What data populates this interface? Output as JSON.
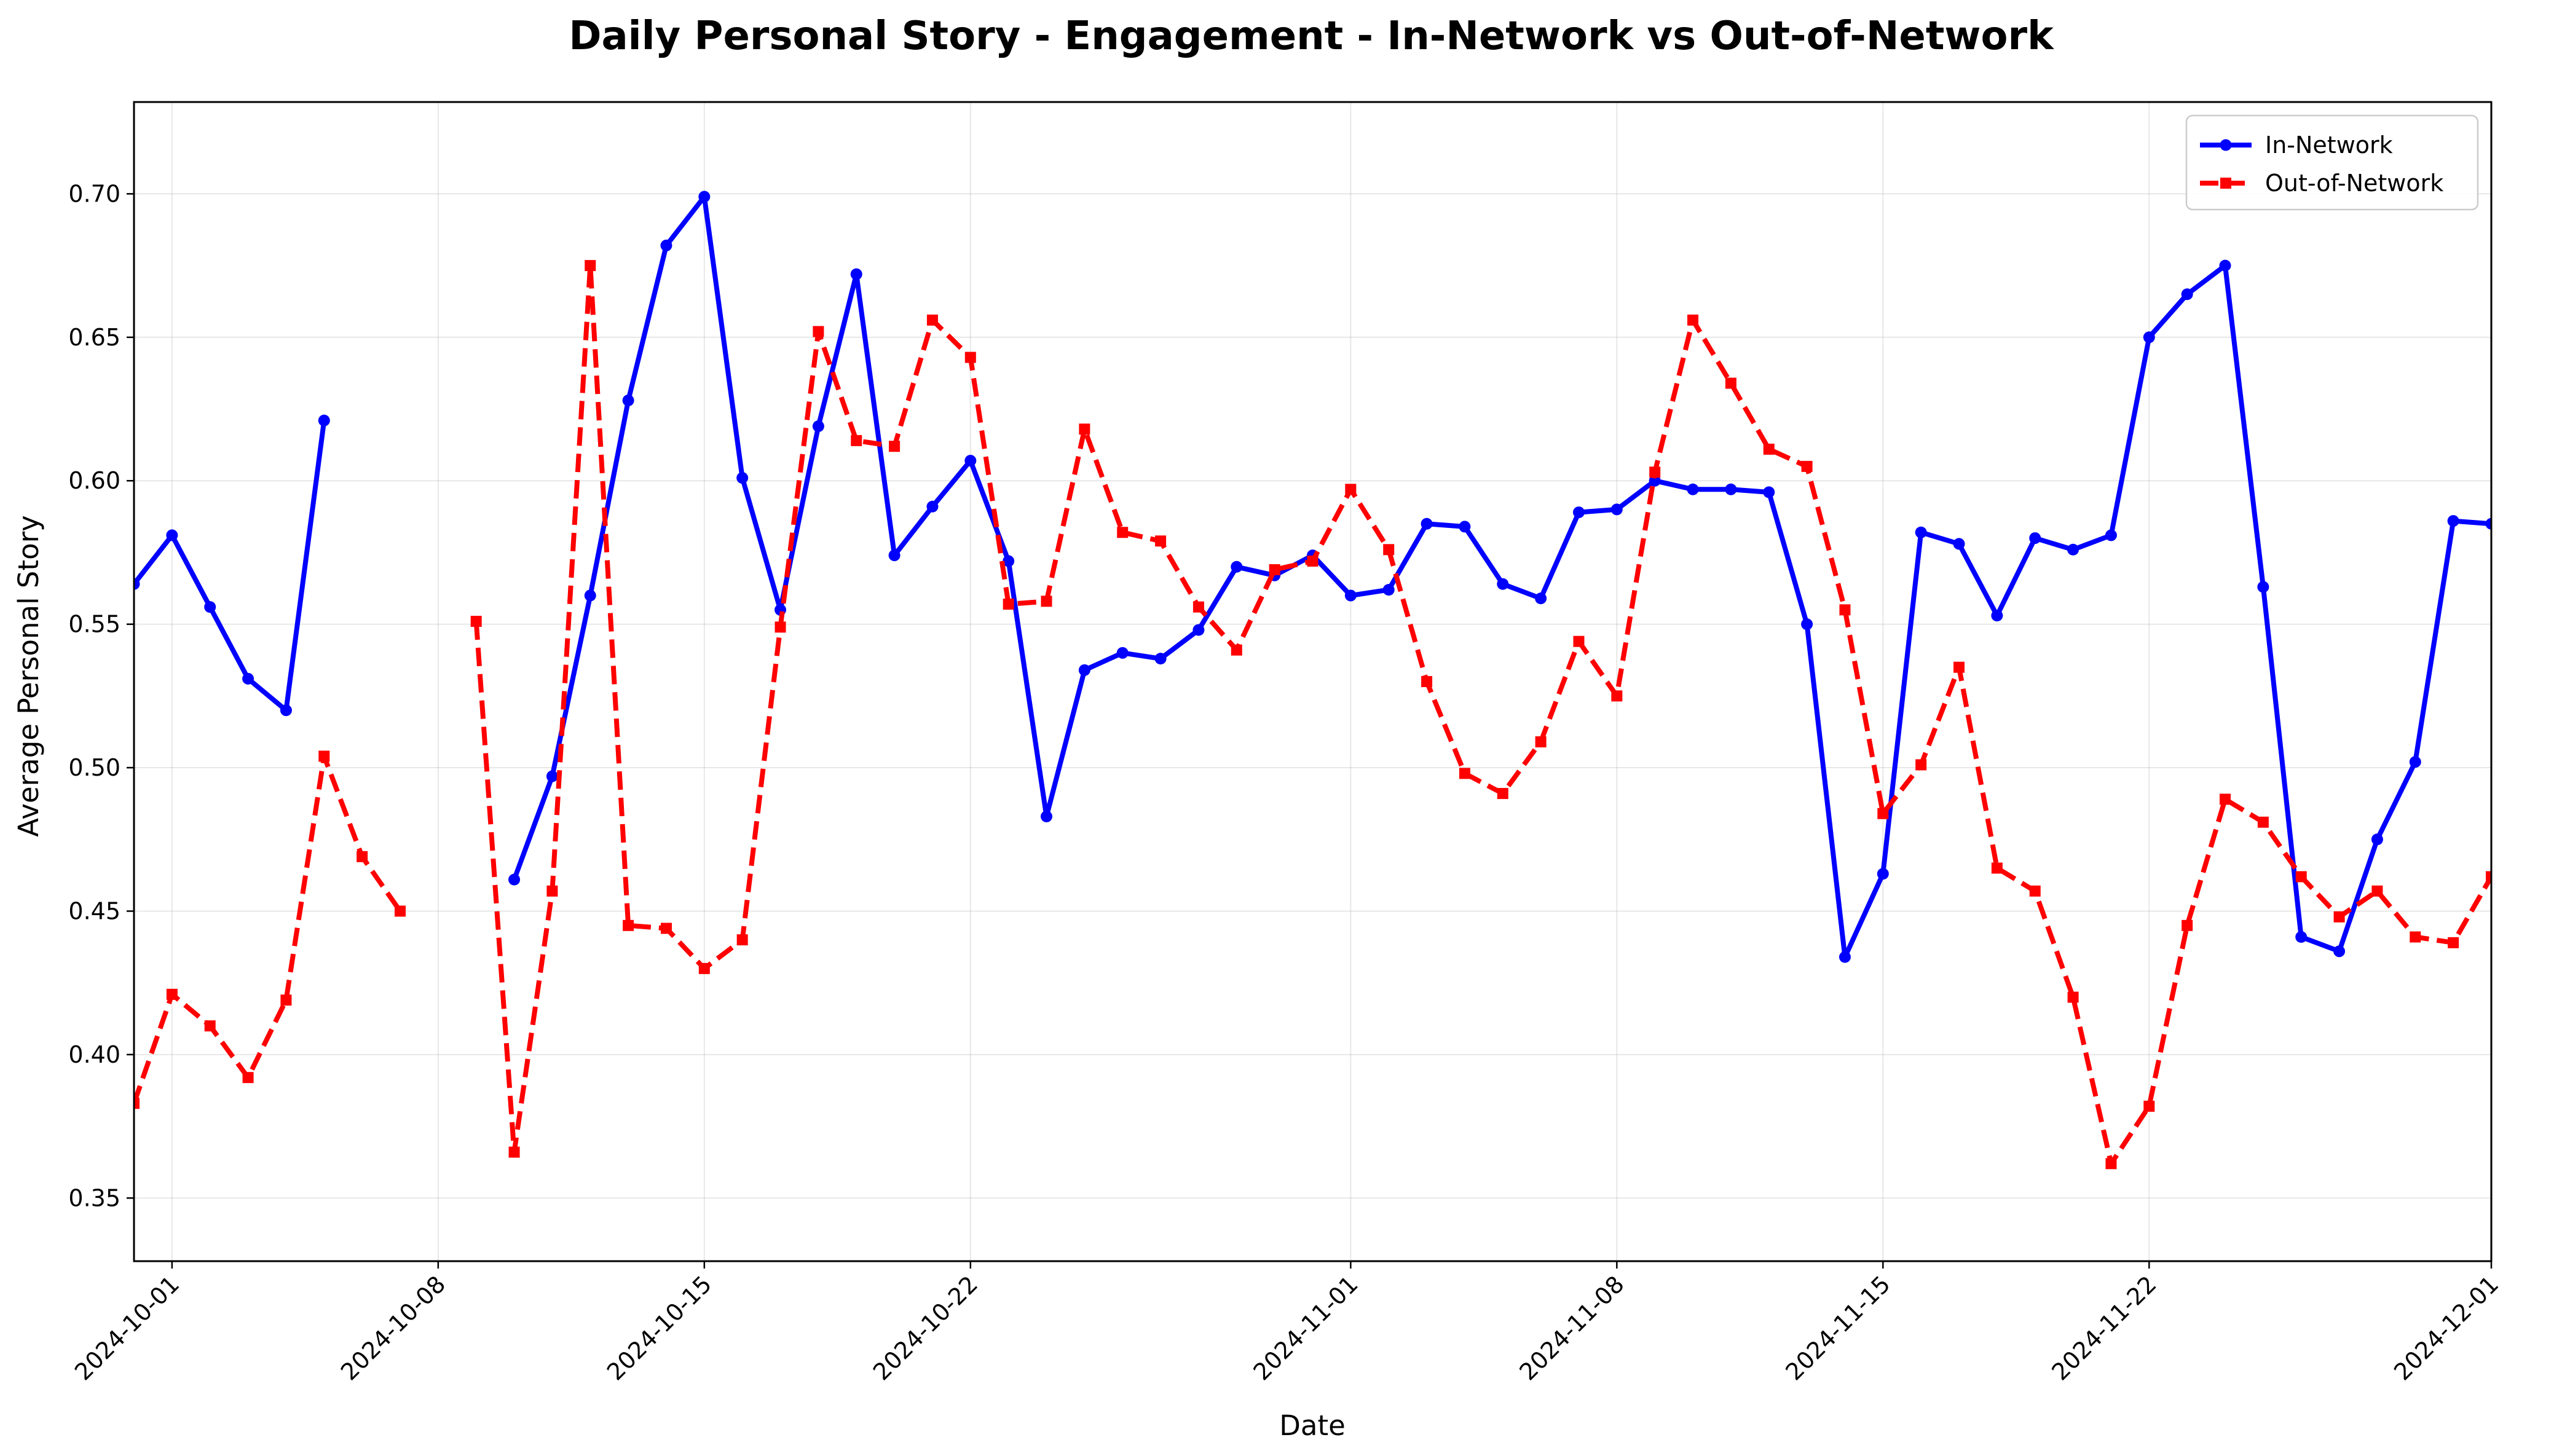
{
  "chart_data": {
    "type": "line",
    "title": "Daily Personal Story - Engagement - In-Network vs Out-of-Network",
    "xlabel": "Date",
    "ylabel": "Average Personal Story",
    "x_range": [
      "2024-09-30",
      "2024-12-01"
    ],
    "ylim": [
      0.328,
      0.732
    ],
    "x_ticks": [
      "2024-10-01",
      "2024-10-08",
      "2024-10-15",
      "2024-10-22",
      "2024-11-01",
      "2024-11-08",
      "2024-11-15",
      "2024-11-22",
      "2024-12-01"
    ],
    "y_ticks": [
      "0.35",
      "0.40",
      "0.45",
      "0.50",
      "0.55",
      "0.60",
      "0.65",
      "0.70"
    ],
    "grid": true,
    "legend_position": "top-right",
    "series": [
      {
        "name": "In-Network",
        "color": "#0000ff",
        "line_style": "solid",
        "marker": "circle",
        "points": [
          [
            "2024-09-30",
            0.564
          ],
          [
            "2024-10-01",
            0.581
          ],
          [
            "2024-10-02",
            0.556
          ],
          [
            "2024-10-03",
            0.531
          ],
          [
            "2024-10-04",
            0.52
          ],
          [
            "2024-10-05",
            0.621
          ],
          [
            "2024-10-10",
            0.461
          ],
          [
            "2024-10-11",
            0.497
          ],
          [
            "2024-10-12",
            0.56
          ],
          [
            "2024-10-13",
            0.628
          ],
          [
            "2024-10-14",
            0.682
          ],
          [
            "2024-10-15",
            0.699
          ],
          [
            "2024-10-16",
            0.601
          ],
          [
            "2024-10-17",
            0.555
          ],
          [
            "2024-10-18",
            0.619
          ],
          [
            "2024-10-19",
            0.672
          ],
          [
            "2024-10-20",
            0.574
          ],
          [
            "2024-10-21",
            0.591
          ],
          [
            "2024-10-22",
            0.607
          ],
          [
            "2024-10-23",
            0.572
          ],
          [
            "2024-10-24",
            0.483
          ],
          [
            "2024-10-25",
            0.534
          ],
          [
            "2024-10-26",
            0.54
          ],
          [
            "2024-10-27",
            0.538
          ],
          [
            "2024-10-28",
            0.548
          ],
          [
            "2024-10-29",
            0.57
          ],
          [
            "2024-10-30",
            0.567
          ],
          [
            "2024-10-31",
            0.574
          ],
          [
            "2024-11-01",
            0.56
          ],
          [
            "2024-11-02",
            0.562
          ],
          [
            "2024-11-03",
            0.585
          ],
          [
            "2024-11-04",
            0.584
          ],
          [
            "2024-11-05",
            0.564
          ],
          [
            "2024-11-06",
            0.559
          ],
          [
            "2024-11-07",
            0.589
          ],
          [
            "2024-11-08",
            0.59
          ],
          [
            "2024-11-09",
            0.6
          ],
          [
            "2024-11-10",
            0.597
          ],
          [
            "2024-11-11",
            0.597
          ],
          [
            "2024-11-12",
            0.596
          ],
          [
            "2024-11-13",
            0.55
          ],
          [
            "2024-11-14",
            0.434
          ],
          [
            "2024-11-15",
            0.463
          ],
          [
            "2024-11-16",
            0.582
          ],
          [
            "2024-11-17",
            0.578
          ],
          [
            "2024-11-18",
            0.553
          ],
          [
            "2024-11-19",
            0.58
          ],
          [
            "2024-11-20",
            0.576
          ],
          [
            "2024-11-21",
            0.581
          ],
          [
            "2024-11-22",
            0.65
          ],
          [
            "2024-11-23",
            0.665
          ],
          [
            "2024-11-24",
            0.675
          ],
          [
            "2024-11-25",
            0.563
          ],
          [
            "2024-11-26",
            0.441
          ],
          [
            "2024-11-27",
            0.436
          ],
          [
            "2024-11-28",
            0.475
          ],
          [
            "2024-11-29",
            0.502
          ],
          [
            "2024-11-30",
            0.586
          ],
          [
            "2024-12-01",
            0.585
          ]
        ]
      },
      {
        "name": "Out-of-Network",
        "color": "#ff0000",
        "line_style": "dashed",
        "marker": "square",
        "points": [
          [
            "2024-09-30",
            0.383
          ],
          [
            "2024-10-01",
            0.421
          ],
          [
            "2024-10-02",
            0.41
          ],
          [
            "2024-10-03",
            0.392
          ],
          [
            "2024-10-04",
            0.419
          ],
          [
            "2024-10-05",
            0.504
          ],
          [
            "2024-10-06",
            0.469
          ],
          [
            "2024-10-07",
            0.45
          ],
          [
            "2024-10-09",
            0.551
          ],
          [
            "2024-10-10",
            0.366
          ],
          [
            "2024-10-11",
            0.457
          ],
          [
            "2024-10-12",
            0.675
          ],
          [
            "2024-10-13",
            0.445
          ],
          [
            "2024-10-14",
            0.444
          ],
          [
            "2024-10-15",
            0.43
          ],
          [
            "2024-10-16",
            0.44
          ],
          [
            "2024-10-17",
            0.549
          ],
          [
            "2024-10-18",
            0.652
          ],
          [
            "2024-10-19",
            0.614
          ],
          [
            "2024-10-20",
            0.612
          ],
          [
            "2024-10-21",
            0.656
          ],
          [
            "2024-10-22",
            0.643
          ],
          [
            "2024-10-23",
            0.557
          ],
          [
            "2024-10-24",
            0.558
          ],
          [
            "2024-10-25",
            0.618
          ],
          [
            "2024-10-26",
            0.582
          ],
          [
            "2024-10-27",
            0.579
          ],
          [
            "2024-10-28",
            0.556
          ],
          [
            "2024-10-29",
            0.541
          ],
          [
            "2024-10-30",
            0.569
          ],
          [
            "2024-10-31",
            0.572
          ],
          [
            "2024-11-01",
            0.597
          ],
          [
            "2024-11-02",
            0.576
          ],
          [
            "2024-11-03",
            0.53
          ],
          [
            "2024-11-04",
            0.498
          ],
          [
            "2024-11-05",
            0.491
          ],
          [
            "2024-11-06",
            0.509
          ],
          [
            "2024-11-07",
            0.544
          ],
          [
            "2024-11-08",
            0.525
          ],
          [
            "2024-11-09",
            0.603
          ],
          [
            "2024-11-10",
            0.656
          ],
          [
            "2024-11-11",
            0.634
          ],
          [
            "2024-11-12",
            0.611
          ],
          [
            "2024-11-13",
            0.605
          ],
          [
            "2024-11-14",
            0.555
          ],
          [
            "2024-11-15",
            0.484
          ],
          [
            "2024-11-16",
            0.501
          ],
          [
            "2024-11-17",
            0.535
          ],
          [
            "2024-11-18",
            0.465
          ],
          [
            "2024-11-19",
            0.457
          ],
          [
            "2024-11-20",
            0.42
          ],
          [
            "2024-11-21",
            0.362
          ],
          [
            "2024-11-22",
            0.382
          ],
          [
            "2024-11-23",
            0.445
          ],
          [
            "2024-11-24",
            0.489
          ],
          [
            "2024-11-25",
            0.481
          ],
          [
            "2024-11-26",
            0.462
          ],
          [
            "2024-11-27",
            0.448
          ],
          [
            "2024-11-28",
            0.457
          ],
          [
            "2024-11-29",
            0.441
          ],
          [
            "2024-11-30",
            0.439
          ],
          [
            "2024-12-01",
            0.462
          ]
        ]
      }
    ]
  }
}
